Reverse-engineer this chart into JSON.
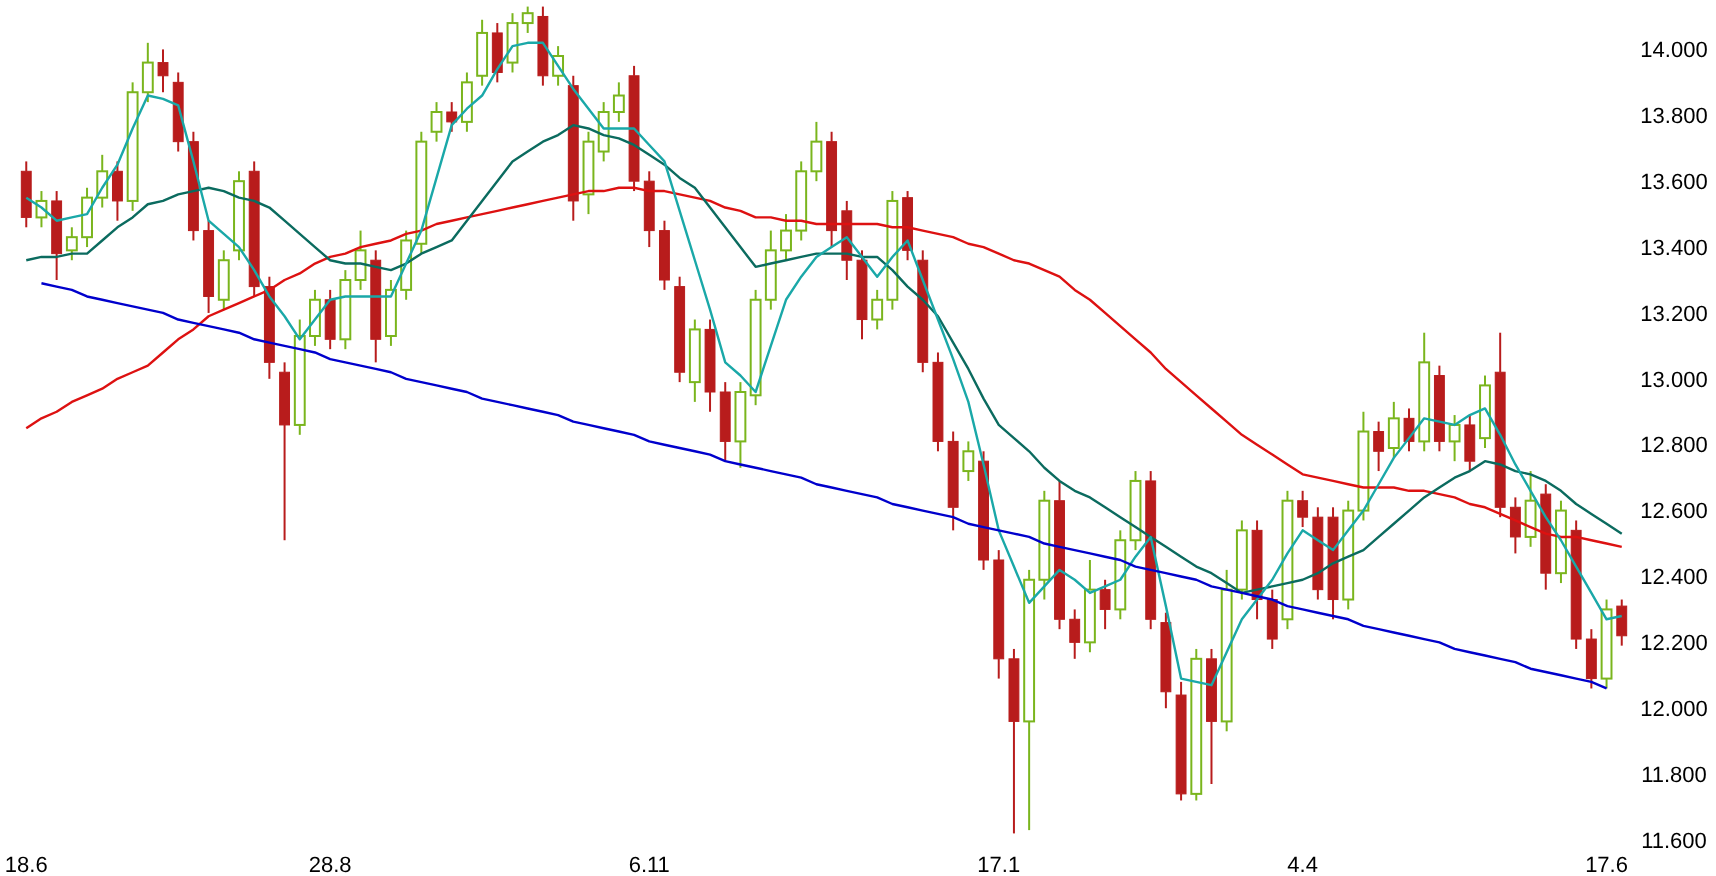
{
  "chart_data": {
    "type": "candlestick",
    "categories": [
      "18.6",
      null,
      null,
      null,
      null,
      null,
      null,
      null,
      null,
      null,
      null,
      null,
      null,
      null,
      null,
      null,
      null,
      null,
      null,
      null,
      "28.8",
      null,
      null,
      null,
      null,
      null,
      null,
      null,
      null,
      null,
      null,
      null,
      null,
      null,
      null,
      null,
      null,
      null,
      null,
      null,
      null,
      "6.11",
      null,
      null,
      null,
      null,
      null,
      null,
      null,
      null,
      null,
      null,
      null,
      null,
      null,
      null,
      null,
      null,
      null,
      null,
      null,
      null,
      null,
      null,
      "17.1",
      null,
      null,
      null,
      null,
      null,
      null,
      null,
      null,
      null,
      null,
      null,
      null,
      null,
      null,
      null,
      null,
      null,
      null,
      null,
      "4.4",
      null,
      null,
      null,
      null,
      null,
      null,
      null,
      null,
      null,
      null,
      null,
      null,
      null,
      null,
      null,
      null,
      null,
      null,
      null,
      "17.6",
      null
    ],
    "ylim": [
      11.6,
      14.15
    ],
    "yticks": [
      {
        "value": 11.6,
        "label": "11.600"
      },
      {
        "value": 11.8,
        "label": "11.800"
      },
      {
        "value": 12,
        "label": "12.000"
      },
      {
        "value": 12.2,
        "label": "12.200"
      },
      {
        "value": 12.4,
        "label": "12.400"
      },
      {
        "value": 12.6,
        "label": "12.600"
      },
      {
        "value": 12.8,
        "label": "12.800"
      },
      {
        "value": 13,
        "label": "13.000"
      },
      {
        "value": 13.2,
        "label": "13.200"
      },
      {
        "value": 13.4,
        "label": "13.400"
      },
      {
        "value": 13.6,
        "label": "13.600"
      },
      {
        "value": 13.8,
        "label": "13.800"
      },
      {
        "value": 14,
        "label": "14.000"
      }
    ],
    "ohlc": [
      [
        13.63,
        13.66,
        13.46,
        13.49
      ],
      [
        13.49,
        13.57,
        13.46,
        13.54
      ],
      [
        13.54,
        13.57,
        13.3,
        13.38
      ],
      [
        13.39,
        13.46,
        13.36,
        13.43
      ],
      [
        13.43,
        13.58,
        13.4,
        13.55
      ],
      [
        13.55,
        13.68,
        13.52,
        13.63
      ],
      [
        13.63,
        13.66,
        13.48,
        13.54
      ],
      [
        13.54,
        13.9,
        13.51,
        13.87
      ],
      [
        13.87,
        14.02,
        13.84,
        13.96
      ],
      [
        13.96,
        14.0,
        13.87,
        13.92
      ],
      [
        13.9,
        13.93,
        13.69,
        13.72
      ],
      [
        13.72,
        13.75,
        13.42,
        13.45
      ],
      [
        13.45,
        13.48,
        13.2,
        13.25
      ],
      [
        13.24,
        13.39,
        13.21,
        13.36
      ],
      [
        13.39,
        13.63,
        13.36,
        13.6
      ],
      [
        13.63,
        13.66,
        13.25,
        13.28
      ],
      [
        13.28,
        13.31,
        13.0,
        13.05
      ],
      [
        13.02,
        13.05,
        12.51,
        12.86
      ],
      [
        12.86,
        13.18,
        12.83,
        13.13
      ],
      [
        13.13,
        13.27,
        13.1,
        13.24
      ],
      [
        13.24,
        13.27,
        13.09,
        13.12
      ],
      [
        13.12,
        13.33,
        13.09,
        13.3
      ],
      [
        13.3,
        13.45,
        13.27,
        13.39
      ],
      [
        13.36,
        13.39,
        13.05,
        13.12
      ],
      [
        13.13,
        13.3,
        13.1,
        13.27
      ],
      [
        13.27,
        13.45,
        13.24,
        13.42
      ],
      [
        13.41,
        13.75,
        13.38,
        13.72
      ],
      [
        13.75,
        13.84,
        13.72,
        13.81
      ],
      [
        13.81,
        13.84,
        13.75,
        13.78
      ],
      [
        13.78,
        13.93,
        13.75,
        13.9
      ],
      [
        13.92,
        14.09,
        13.89,
        14.05
      ],
      [
        14.05,
        14.08,
        13.9,
        13.93
      ],
      [
        13.96,
        14.11,
        13.93,
        14.08
      ],
      [
        14.08,
        14.13,
        14.05,
        14.11
      ],
      [
        14.1,
        14.13,
        13.89,
        13.92
      ],
      [
        13.92,
        14.01,
        13.89,
        13.98
      ],
      [
        13.89,
        13.92,
        13.48,
        13.54
      ],
      [
        13.56,
        13.75,
        13.5,
        13.72
      ],
      [
        13.69,
        13.84,
        13.66,
        13.81
      ],
      [
        13.81,
        13.9,
        13.78,
        13.86
      ],
      [
        13.92,
        13.95,
        13.57,
        13.6
      ],
      [
        13.6,
        13.63,
        13.4,
        13.45
      ],
      [
        13.45,
        13.48,
        13.27,
        13.3
      ],
      [
        13.28,
        13.31,
        12.99,
        13.02
      ],
      [
        12.99,
        13.18,
        12.93,
        13.15
      ],
      [
        13.15,
        13.18,
        12.9,
        12.96
      ],
      [
        12.96,
        12.99,
        12.75,
        12.81
      ],
      [
        12.81,
        12.99,
        12.73,
        12.96
      ],
      [
        12.95,
        13.27,
        12.92,
        13.24
      ],
      [
        13.24,
        13.45,
        13.21,
        13.39
      ],
      [
        13.39,
        13.5,
        13.36,
        13.45
      ],
      [
        13.45,
        13.66,
        13.42,
        13.63
      ],
      [
        13.63,
        13.78,
        13.6,
        13.72
      ],
      [
        13.72,
        13.75,
        13.4,
        13.45
      ],
      [
        13.51,
        13.54,
        13.3,
        13.36
      ],
      [
        13.36,
        13.39,
        13.12,
        13.18
      ],
      [
        13.18,
        13.27,
        13.15,
        13.24
      ],
      [
        13.24,
        13.57,
        13.21,
        13.54
      ],
      [
        13.55,
        13.57,
        13.36,
        13.39
      ],
      [
        13.36,
        13.39,
        13.02,
        13.05
      ],
      [
        13.05,
        13.08,
        12.78,
        12.81
      ],
      [
        12.81,
        12.84,
        12.54,
        12.61
      ],
      [
        12.72,
        12.81,
        12.69,
        12.78
      ],
      [
        12.75,
        12.78,
        12.42,
        12.45
      ],
      [
        12.45,
        12.48,
        12.09,
        12.15
      ],
      [
        12.15,
        12.18,
        11.62,
        11.96
      ],
      [
        11.96,
        12.42,
        11.63,
        12.39
      ],
      [
        12.39,
        12.66,
        12.33,
        12.63
      ],
      [
        12.63,
        12.69,
        12.24,
        12.27
      ],
      [
        12.27,
        12.3,
        12.15,
        12.2
      ],
      [
        12.2,
        12.45,
        12.17,
        12.36
      ],
      [
        12.36,
        12.39,
        12.24,
        12.3
      ],
      [
        12.3,
        12.54,
        12.27,
        12.51
      ],
      [
        12.51,
        12.72,
        12.48,
        12.69
      ],
      [
        12.69,
        12.72,
        12.24,
        12.27
      ],
      [
        12.26,
        12.29,
        12.0,
        12.05
      ],
      [
        12.04,
        12.08,
        11.72,
        11.74
      ],
      [
        11.74,
        12.18,
        11.72,
        12.15
      ],
      [
        12.15,
        12.18,
        11.77,
        11.96
      ],
      [
        11.96,
        12.42,
        11.93,
        12.36
      ],
      [
        12.36,
        12.57,
        12.33,
        12.54
      ],
      [
        12.54,
        12.57,
        12.27,
        12.33
      ],
      [
        12.33,
        12.36,
        12.18,
        12.21
      ],
      [
        12.27,
        12.66,
        12.24,
        12.63
      ],
      [
        12.63,
        12.66,
        12.55,
        12.58
      ],
      [
        12.58,
        12.61,
        12.33,
        12.36
      ],
      [
        12.58,
        12.61,
        12.27,
        12.33
      ],
      [
        12.33,
        12.63,
        12.3,
        12.6
      ],
      [
        12.6,
        12.9,
        12.57,
        12.84
      ],
      [
        12.84,
        12.87,
        12.72,
        12.78
      ],
      [
        12.79,
        12.93,
        12.76,
        12.88
      ],
      [
        12.88,
        12.91,
        12.78,
        12.81
      ],
      [
        12.81,
        13.14,
        12.78,
        13.05
      ],
      [
        13.01,
        13.04,
        12.78,
        12.81
      ],
      [
        12.81,
        12.89,
        12.75,
        12.86
      ],
      [
        12.86,
        12.89,
        12.72,
        12.75
      ],
      [
        12.82,
        13.01,
        12.79,
        12.98
      ],
      [
        13.02,
        13.14,
        12.58,
        12.61
      ],
      [
        12.61,
        12.64,
        12.47,
        12.52
      ],
      [
        12.52,
        12.72,
        12.49,
        12.63
      ],
      [
        12.65,
        12.68,
        12.36,
        12.41
      ],
      [
        12.41,
        12.63,
        12.38,
        12.6
      ],
      [
        12.54,
        12.57,
        12.18,
        12.21
      ],
      [
        12.21,
        12.24,
        12.06,
        12.09
      ],
      [
        12.09,
        12.33,
        12.06,
        12.3
      ],
      [
        12.31,
        12.33,
        12.19,
        12.22
      ]
    ],
    "colors": [
      "#b81c1c",
      "#7ab51d",
      "#b81c1c",
      "#7ab51d",
      "#7ab51d",
      "#7ab51d",
      "#b81c1c",
      "#7ab51d",
      "#7ab51d",
      "#b81c1c",
      "#b81c1c",
      "#b81c1c",
      "#b81c1c",
      "#7ab51d",
      "#7ab51d",
      "#b81c1c",
      "#b81c1c",
      "#b81c1c",
      "#7ab51d",
      "#7ab51d",
      "#b81c1c",
      "#7ab51d",
      "#7ab51d",
      "#b81c1c",
      "#7ab51d",
      "#7ab51d",
      "#7ab51d",
      "#7ab51d",
      "#b81c1c",
      "#7ab51d",
      "#7ab51d",
      "#b81c1c",
      "#7ab51d",
      "#7ab51d",
      "#b81c1c",
      "#7ab51d",
      "#b81c1c",
      "#7ab51d",
      "#7ab51d",
      "#7ab51d",
      "#b81c1c",
      "#b81c1c",
      "#b81c1c",
      "#b81c1c",
      "#7ab51d",
      "#b81c1c",
      "#b81c1c",
      "#7ab51d",
      "#7ab51d",
      "#7ab51d",
      "#7ab51d",
      "#7ab51d",
      "#7ab51d",
      "#b81c1c",
      "#b81c1c",
      "#b81c1c",
      "#7ab51d",
      "#7ab51d",
      "#b81c1c",
      "#b81c1c",
      "#b81c1c",
      "#b81c1c",
      "#7ab51d",
      "#b81c1c",
      "#b81c1c",
      "#b81c1c",
      "#7ab51d",
      "#7ab51d",
      "#b81c1c",
      "#b81c1c",
      "#7ab51d",
      "#b81c1c",
      "#7ab51d",
      "#7ab51d",
      "#b81c1c",
      "#b81c1c",
      "#b81c1c",
      "#7ab51d",
      "#b81c1c",
      "#7ab51d",
      "#7ab51d",
      "#b81c1c",
      "#b81c1c",
      "#7ab51d",
      "#b81c1c",
      "#b81c1c",
      "#b81c1c",
      "#7ab51d",
      "#7ab51d",
      "#b81c1c",
      "#7ab51d",
      "#b81c1c",
      "#7ab51d",
      "#b81c1c",
      "#7ab51d",
      "#b81c1c",
      "#7ab51d",
      "#b81c1c",
      "#b81c1c",
      "#7ab51d",
      "#b81c1c",
      "#7ab51d",
      "#b81c1c",
      "#b81c1c",
      "#7ab51d",
      "#b81c1c"
    ],
    "series": [
      {
        "type": "line",
        "color": "#dd1111",
        "values": [
          12.85,
          12.88,
          12.9,
          12.93,
          12.95,
          12.97,
          13.0,
          13.02,
          13.04,
          13.08,
          13.12,
          13.15,
          13.19,
          13.21,
          13.23,
          13.25,
          13.27,
          13.3,
          13.32,
          13.35,
          13.37,
          13.38,
          13.4,
          13.41,
          13.42,
          13.44,
          13.45,
          13.47,
          13.48,
          13.49,
          13.5,
          13.51,
          13.52,
          13.53,
          13.54,
          13.55,
          13.56,
          13.57,
          13.57,
          13.58,
          13.58,
          13.57,
          13.57,
          13.56,
          13.55,
          13.54,
          13.52,
          13.51,
          13.49,
          13.49,
          13.48,
          13.48,
          13.47,
          13.47,
          13.47,
          13.47,
          13.47,
          13.46,
          13.46,
          13.45,
          13.44,
          13.43,
          13.41,
          13.4,
          13.38,
          13.36,
          13.35,
          13.33,
          13.31,
          13.27,
          13.24,
          13.2,
          13.16,
          13.12,
          13.08,
          13.03,
          12.99,
          12.95,
          12.91,
          12.87,
          12.83,
          12.8,
          12.77,
          12.74,
          12.71,
          12.7,
          12.69,
          12.68,
          12.67,
          12.67,
          12.67,
          12.66,
          12.66,
          12.65,
          12.64,
          12.62,
          12.61,
          12.59,
          12.57,
          12.55,
          12.53,
          12.52,
          12.52,
          12.51,
          12.5,
          12.49
        ]
      },
      {
        "type": "line",
        "color": "#0b6b5f",
        "values": [
          13.36,
          13.37,
          13.37,
          13.38,
          13.38,
          13.42,
          13.46,
          13.49,
          13.53,
          13.54,
          13.56,
          13.57,
          13.58,
          13.57,
          13.55,
          13.54,
          13.52,
          13.48,
          13.44,
          13.4,
          13.36,
          13.35,
          13.35,
          13.34,
          13.33,
          13.35,
          13.38,
          13.4,
          13.42,
          13.48,
          13.54,
          13.6,
          13.66,
          13.69,
          13.72,
          13.74,
          13.77,
          13.76,
          13.74,
          13.73,
          13.71,
          13.68,
          13.65,
          13.61,
          13.58,
          13.52,
          13.46,
          13.4,
          13.34,
          13.35,
          13.36,
          13.37,
          13.38,
          13.38,
          13.38,
          13.37,
          13.37,
          13.33,
          13.28,
          13.24,
          13.19,
          13.11,
          13.03,
          12.94,
          12.86,
          12.82,
          12.78,
          12.73,
          12.69,
          12.66,
          12.64,
          12.61,
          12.58,
          12.55,
          12.52,
          12.49,
          12.46,
          12.43,
          12.41,
          12.38,
          12.35,
          12.36,
          12.37,
          12.38,
          12.39,
          12.41,
          12.44,
          12.46,
          12.48,
          12.52,
          12.56,
          12.6,
          12.64,
          12.67,
          12.7,
          12.72,
          12.75,
          12.74,
          12.72,
          12.71,
          12.69,
          12.66,
          12.62,
          12.59,
          12.56,
          12.53
        ]
      },
      {
        "type": "line",
        "color": "#1aa8a8",
        "values": [
          13.55,
          13.52,
          13.48,
          13.49,
          13.5,
          13.58,
          13.65,
          13.76,
          13.86,
          13.85,
          13.83,
          13.66,
          13.48,
          13.44,
          13.4,
          13.33,
          13.25,
          13.19,
          13.12,
          13.18,
          13.24,
          13.25,
          13.25,
          13.25,
          13.25,
          13.35,
          13.45,
          13.61,
          13.77,
          13.82,
          13.86,
          13.94,
          14.01,
          14.02,
          14.02,
          13.95,
          13.88,
          13.82,
          13.76,
          13.76,
          13.76,
          13.71,
          13.66,
          13.51,
          13.36,
          13.21,
          13.05,
          13.01,
          12.96,
          13.1,
          13.24,
          13.31,
          13.37,
          13.4,
          13.43,
          13.37,
          13.31,
          13.37,
          13.42,
          13.3,
          13.18,
          13.06,
          12.93,
          12.74,
          12.54,
          12.43,
          12.32,
          12.37,
          12.42,
          12.39,
          12.35,
          12.37,
          12.39,
          12.46,
          12.52,
          12.31,
          12.09,
          12.08,
          12.07,
          12.17,
          12.27,
          12.33,
          12.39,
          12.47,
          12.54,
          12.51,
          12.48,
          12.54,
          12.6,
          12.68,
          12.76,
          12.82,
          12.88,
          12.87,
          12.86,
          12.89,
          12.91,
          12.83,
          12.74,
          12.66,
          12.58,
          12.51,
          12.43,
          12.35,
          12.27,
          12.28
        ]
      },
      {
        "type": "line",
        "color": "#0000cc",
        "values": [
          null,
          13.29,
          13.28,
          13.27,
          13.25,
          13.24,
          13.23,
          13.22,
          13.21,
          13.2,
          13.18,
          13.17,
          13.16,
          13.15,
          13.14,
          13.12,
          13.11,
          13.1,
          13.09,
          13.08,
          13.06,
          13.05,
          13.04,
          13.03,
          13.02,
          13.0,
          12.99,
          12.98,
          12.97,
          12.96,
          12.94,
          12.93,
          12.92,
          12.91,
          12.9,
          12.89,
          12.87,
          12.86,
          12.85,
          12.84,
          12.83,
          12.81,
          12.8,
          12.79,
          12.78,
          12.77,
          12.75,
          12.74,
          12.73,
          12.72,
          12.71,
          12.7,
          12.68,
          12.67,
          12.66,
          12.65,
          12.64,
          12.62,
          12.61,
          12.6,
          12.59,
          12.58,
          12.56,
          12.55,
          12.54,
          12.53,
          12.52,
          12.5,
          12.49,
          12.48,
          12.47,
          12.46,
          12.45,
          12.43,
          12.42,
          12.41,
          12.4,
          12.39,
          12.37,
          12.36,
          12.35,
          12.34,
          12.33,
          12.31,
          12.3,
          12.29,
          12.28,
          12.27,
          12.25,
          12.24,
          12.23,
          12.22,
          12.21,
          12.2,
          12.18,
          12.17,
          12.16,
          12.15,
          12.14,
          12.12,
          12.11,
          12.1,
          12.09,
          12.08,
          12.06,
          null
        ]
      }
    ]
  }
}
